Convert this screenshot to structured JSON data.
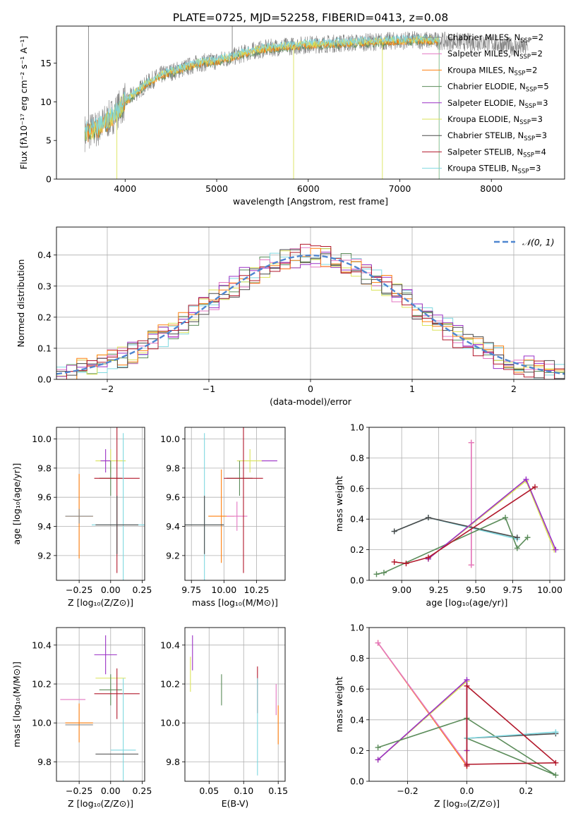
{
  "figure": {
    "title": "PLATE=0725, MJD=52258, FIBERID=0413, z=0.08"
  },
  "series": [
    {
      "name": "Chabrier MILES",
      "nssp": "2",
      "color": "#888888"
    },
    {
      "name": "Salpeter MILES",
      "nssp": "2",
      "color": "#e377c2"
    },
    {
      "name": "Kroupa MILES",
      "nssp": "2",
      "color": "#ff7f0e"
    },
    {
      "name": "Chabrier ELODIE",
      "nssp": "5",
      "color": "#5b8c5a"
    },
    {
      "name": "Salpeter ELODIE",
      "nssp": "3",
      "color": "#9b30c6"
    },
    {
      "name": "Kroupa ELODIE",
      "nssp": "3",
      "color": "#dbe35a"
    },
    {
      "name": "Chabrier STELIB",
      "nssp": "3",
      "color": "#4a4a4a"
    },
    {
      "name": "Salpeter STELIB",
      "nssp": "4",
      "color": "#b2182b"
    },
    {
      "name": "Kroupa STELIB",
      "nssp": "3",
      "color": "#7fd8e0"
    }
  ],
  "chart_data": [
    {
      "id": "spectrum",
      "type": "line",
      "xlabel": "wavelength [Angstrom, rest frame]",
      "ylabel": "Flux [fλ10⁻¹⁷ erg cm⁻² s⁻¹ A⁻¹]",
      "xlim": [
        3250,
        8800
      ],
      "ylim": [
        0,
        19.8
      ],
      "xticks": [
        "4000",
        "5000",
        "6000",
        "7000",
        "8000"
      ],
      "yticks": [
        "0",
        "5",
        "10",
        "15"
      ],
      "legend": "top-right",
      "spectrum": {
        "x": [
          3560,
          3700,
          3850,
          4000,
          4100,
          4250,
          4400,
          4600,
          4800,
          5000,
          5200,
          5400,
          5600,
          5800,
          6000,
          6200,
          6400,
          6600,
          6800,
          7000,
          7200,
          7400,
          7600,
          7800,
          8000,
          8200,
          8400
        ],
        "y": [
          6.0,
          6.5,
          8.0,
          10.0,
          11.0,
          12.5,
          13.5,
          14.2,
          15.0,
          15.3,
          15.9,
          16.6,
          17.0,
          17.2,
          17.4,
          17.5,
          17.6,
          17.7,
          17.8,
          17.9,
          18.0,
          17.9,
          17.8,
          17.7,
          17.6,
          17.2,
          17.0
        ]
      },
      "model_ends": [
        3560,
        7430
      ],
      "spikes": [
        {
          "x": 3600,
          "y": 19.8
        },
        {
          "x": 5170,
          "y": 19.8
        },
        {
          "x": 5840,
          "y": 0.0
        },
        {
          "x": 3910,
          "y": 0.0
        },
        {
          "x": 6810,
          "y": 0.0
        }
      ]
    },
    {
      "id": "residuals",
      "type": "histogram",
      "xlabel": "(data-model)/error",
      "ylabel": "Normed distribution",
      "xlim": [
        -2.5,
        2.5
      ],
      "ylim": [
        0,
        0.49
      ],
      "xticks": [
        "−2",
        "−1",
        "0",
        "1",
        "2"
      ],
      "yticks": [
        "0.0",
        "0.1",
        "0.2",
        "0.3",
        "0.4"
      ],
      "legend": "top-right",
      "gauss_label": "𝒩(0, 1)",
      "bins": {
        "start": -2.5,
        "width": 0.1
      }
    },
    {
      "id": "z-age",
      "type": "scatter",
      "xlabel": "Z [log₁₀(Z/Z⊙)]",
      "ylabel": "age  [log₁₀(age/yr)]",
      "xlim": [
        -0.43,
        0.27
      ],
      "ylim": [
        9.03,
        10.08
      ],
      "xticks": [
        "−0.25",
        "0.00",
        "0.25"
      ],
      "yticks": [
        "9.2",
        "9.4",
        "9.6",
        "9.8",
        "10.0"
      ],
      "points": [
        {
          "x": -0.25,
          "y": 9.47,
          "xerr": 0.11,
          "yerr": 0.29,
          "c": 2
        },
        {
          "x": -0.25,
          "y": 9.47,
          "xerr": 0.11,
          "yerr": 0.05,
          "c": 0
        },
        {
          "x": 0.0,
          "y": 9.85,
          "xerr": 0.12,
          "yerr": 0.08,
          "c": 5
        },
        {
          "x": -0.04,
          "y": 9.85,
          "xerr": 0.04,
          "yerr": 0.08,
          "c": 4
        },
        {
          "x": 0.0,
          "y": 9.73,
          "xerr": 0.09,
          "yerr": 0.12,
          "c": 3
        },
        {
          "x": 0.05,
          "y": 9.73,
          "xerr": 0.18,
          "yerr": 0.65,
          "c": 7
        },
        {
          "x": 0.1,
          "y": 9.41,
          "xerr": 0.25,
          "yerr": 0.63,
          "c": 8
        },
        {
          "x": 0.05,
          "y": 9.41,
          "xerr": 0.17,
          "yerr": 0.2,
          "c": 6
        }
      ]
    },
    {
      "id": "mass-age",
      "type": "scatter",
      "xlabel": "mass [log₁₀(M/M⊙)]",
      "ylabel": "",
      "xlim": [
        9.7,
        10.47
      ],
      "ylim": [
        9.03,
        10.08
      ],
      "xticks": [
        "9.75",
        "10.00",
        "10.25"
      ],
      "yticks": [
        "9.2",
        "9.4",
        "9.6",
        "9.8",
        "10.0"
      ],
      "points": [
        {
          "x": 9.98,
          "y": 9.47,
          "xerr": 0.1,
          "yerr": 0.32,
          "c": 2
        },
        {
          "x": 10.1,
          "y": 9.47,
          "xerr": 0.08,
          "yerr": 0.1,
          "c": 1
        },
        {
          "x": 10.2,
          "y": 9.85,
          "xerr": 0.1,
          "yerr": 0.08,
          "c": 5
        },
        {
          "x": 10.35,
          "y": 9.85,
          "xerr": 0.06,
          "yerr": 0.0,
          "c": 4
        },
        {
          "x": 10.12,
          "y": 9.73,
          "xerr": 0.1,
          "yerr": 0.12,
          "c": 3
        },
        {
          "x": 10.15,
          "y": 9.73,
          "xerr": 0.15,
          "yerr": 0.65,
          "c": 7
        },
        {
          "x": 9.85,
          "y": 9.41,
          "xerr": 0.15,
          "yerr": 0.63,
          "c": 8
        },
        {
          "x": 9.85,
          "y": 9.41,
          "xerr": 0.15,
          "yerr": 0.2,
          "c": 6
        }
      ]
    },
    {
      "id": "age-weight",
      "type": "line",
      "xlabel": "age  [log₁₀(age/yr)]",
      "ylabel": "mass weight",
      "xlim": [
        8.78,
        10.1
      ],
      "ylim": [
        0,
        1.0
      ],
      "grid": true,
      "xticks": [
        "9.00",
        "9.25",
        "9.50",
        "9.75",
        "10.00"
      ],
      "yticks": [
        "0.0",
        "0.2",
        "0.4",
        "0.6",
        "0.8",
        "1.0"
      ],
      "lines": [
        {
          "c": 2,
          "x": [
            9.47,
            9.47
          ],
          "y": [
            0.1,
            0.9
          ]
        },
        {
          "c": 1,
          "x": [
            9.47,
            9.47
          ],
          "y": [
            0.1,
            0.9
          ]
        },
        {
          "c": 8,
          "x": [
            8.95,
            9.18,
            9.78
          ],
          "y": [
            0.32,
            0.41,
            0.27
          ]
        },
        {
          "c": 6,
          "x": [
            8.95,
            9.18,
            9.78
          ],
          "y": [
            0.32,
            0.41,
            0.28
          ]
        },
        {
          "c": 3,
          "x": [
            8.83,
            8.88,
            9.7,
            9.78,
            9.85
          ],
          "y": [
            0.04,
            0.05,
            0.41,
            0.21,
            0.28
          ]
        },
        {
          "c": 5,
          "x": [
            9.18,
            9.84,
            10.03
          ],
          "y": [
            0.14,
            0.65,
            0.2
          ]
        },
        {
          "c": 4,
          "x": [
            9.18,
            9.84,
            10.04
          ],
          "y": [
            0.14,
            0.66,
            0.2
          ]
        },
        {
          "c": 7,
          "x": [
            8.95,
            9.03,
            9.18,
            9.9
          ],
          "y": [
            0.12,
            0.11,
            0.15,
            0.61
          ]
        }
      ]
    },
    {
      "id": "z-mass",
      "type": "scatter",
      "xlabel": "Z [log₁₀(Z/Z⊙)]",
      "ylabel": "mass [log₁₀(M/M⊙)]",
      "xlim": [
        -0.43,
        0.27
      ],
      "ylim": [
        9.7,
        10.49
      ],
      "xticks": [
        "−0.25",
        "0.00",
        "0.25"
      ],
      "yticks": [
        "9.8",
        "10.0",
        "10.2",
        "10.4"
      ],
      "points": [
        {
          "x": -0.25,
          "y": 10.0,
          "xerr": 0.11,
          "yerr": 0.1,
          "c": 2
        },
        {
          "x": -0.3,
          "y": 10.12,
          "xerr": 0.1,
          "yerr": 0.0,
          "c": 1
        },
        {
          "x": -0.25,
          "y": 9.99,
          "xerr": 0.11,
          "yerr": 0.0,
          "c": 0
        },
        {
          "x": 0.0,
          "y": 10.23,
          "xerr": 0.12,
          "yerr": 0.0,
          "c": 5
        },
        {
          "x": -0.04,
          "y": 10.35,
          "xerr": 0.09,
          "yerr": 0.1,
          "c": 4
        },
        {
          "x": 0.0,
          "y": 10.17,
          "xerr": 0.09,
          "yerr": 0.08,
          "c": 3
        },
        {
          "x": 0.05,
          "y": 10.15,
          "xerr": 0.18,
          "yerr": 0.13,
          "c": 7
        },
        {
          "x": 0.1,
          "y": 9.86,
          "xerr": 0.1,
          "yerr": 0.37,
          "c": 8
        },
        {
          "x": 0.05,
          "y": 9.84,
          "xerr": 0.17,
          "yerr": 0.0,
          "c": 6
        }
      ]
    },
    {
      "id": "ebv-mass",
      "type": "scatter",
      "xlabel": "E(B-V)",
      "ylabel": "",
      "xlim": [
        0.015,
        0.16
      ],
      "ylim": [
        9.7,
        10.49
      ],
      "xticks": [
        "0.05",
        "0.10",
        "0.15"
      ],
      "yticks": [
        "9.8",
        "10.0",
        "10.2",
        "10.4"
      ],
      "points": [
        {
          "x": 0.023,
          "y": 10.25,
          "xerr": 0.0,
          "yerr": 0.09,
          "c": 5
        },
        {
          "x": 0.026,
          "y": 10.36,
          "xerr": 0.0,
          "yerr": 0.09,
          "c": 4
        },
        {
          "x": 0.068,
          "y": 10.17,
          "xerr": 0.0,
          "yerr": 0.08,
          "c": 3
        },
        {
          "x": 0.12,
          "y": 10.17,
          "xerr": 0.0,
          "yerr": 0.12,
          "c": 7
        },
        {
          "x": 0.12,
          "y": 9.98,
          "xerr": 0.0,
          "yerr": 0.25,
          "c": 8
        },
        {
          "x": 0.147,
          "y": 10.12,
          "xerr": 0.0,
          "yerr": 0.08,
          "c": 1
        },
        {
          "x": 0.15,
          "y": 9.99,
          "xerr": 0.0,
          "yerr": 0.1,
          "c": 2
        }
      ]
    },
    {
      "id": "z-weight",
      "type": "line",
      "xlabel": "Z [log₁₀(Z/Z⊙)]",
      "ylabel": "mass weight",
      "xlim": [
        -0.33,
        0.33
      ],
      "ylim": [
        0,
        1.0
      ],
      "grid": true,
      "xticks": [
        "−0.2",
        "0.0",
        "0.2"
      ],
      "yticks": [
        "0.0",
        "0.2",
        "0.4",
        "0.6",
        "0.8",
        "1.0"
      ],
      "lines": [
        {
          "c": 2,
          "x": [
            -0.3,
            0.0
          ],
          "y": [
            0.9,
            0.1
          ]
        },
        {
          "c": 1,
          "x": [
            -0.3,
            0.0
          ],
          "y": [
            0.9,
            0.11
          ]
        },
        {
          "c": 5,
          "x": [
            -0.3,
            0.0,
            0.0
          ],
          "y": [
            0.14,
            0.65,
            0.2
          ]
        },
        {
          "c": 4,
          "x": [
            -0.3,
            0.0,
            0.0
          ],
          "y": [
            0.14,
            0.66,
            0.2
          ]
        },
        {
          "c": 3,
          "x": [
            -0.3,
            0.0,
            0.3,
            0.0
          ],
          "y": [
            0.22,
            0.41,
            0.04,
            0.28
          ]
        },
        {
          "c": 6,
          "x": [
            0.0,
            0.3
          ],
          "y": [
            0.28,
            0.31
          ]
        },
        {
          "c": 8,
          "x": [
            0.0,
            0.3
          ],
          "y": [
            0.28,
            0.32
          ]
        },
        {
          "c": 7,
          "x": [
            0.0,
            0.0,
            0.3,
            0.0
          ],
          "y": [
            0.1,
            0.62,
            0.12,
            0.11
          ]
        }
      ]
    }
  ]
}
